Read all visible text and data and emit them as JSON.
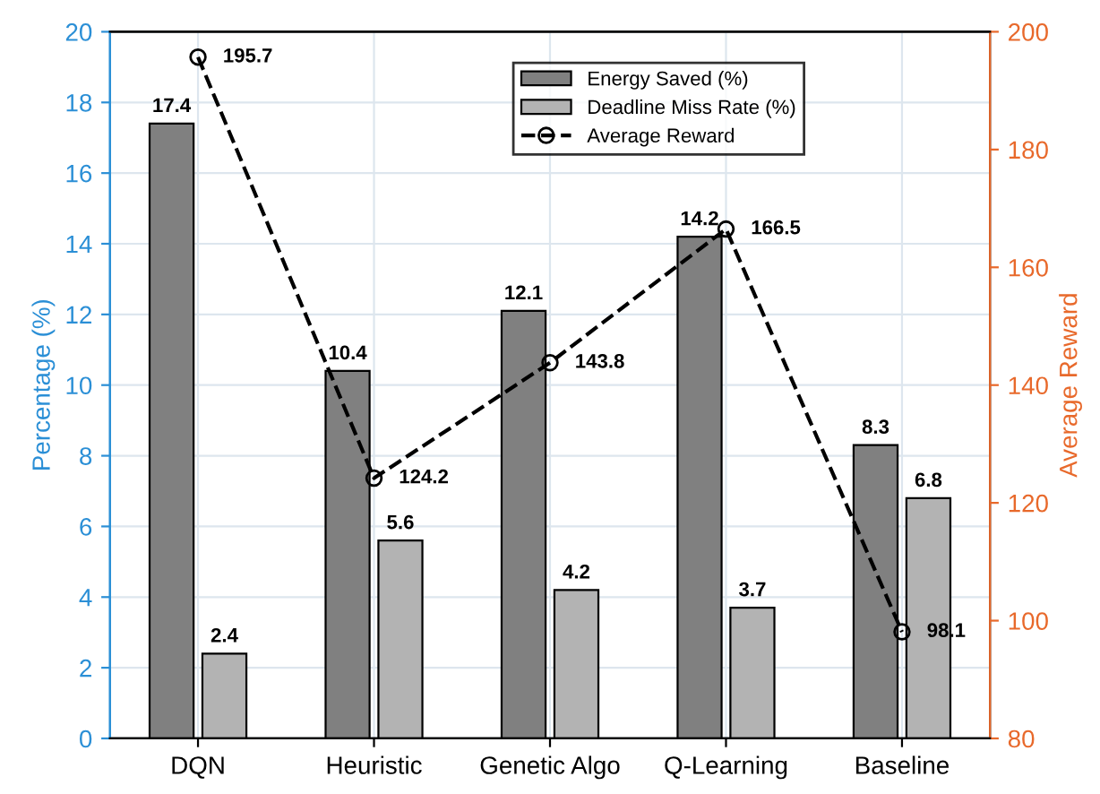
{
  "chart_data": {
    "type": "bar",
    "categories": [
      "DQN",
      "Heuristic",
      "Genetic Algo",
      "Q-Learning",
      "Baseline"
    ],
    "series": [
      {
        "name": "Energy Saved (%)",
        "color": "#808080",
        "values": [
          17.4,
          10.4,
          12.1,
          14.2,
          8.3
        ]
      },
      {
        "name": "Deadline Miss Rate (%)",
        "color": "#b3b3b3",
        "values": [
          2.4,
          5.6,
          4.2,
          3.7,
          6.8
        ]
      },
      {
        "name": "Average Reward",
        "type": "line",
        "axis": "y2",
        "color": "#000000",
        "line_style": "dashed",
        "marker": "circle",
        "values": [
          195.7,
          124.2,
          143.8,
          166.5,
          98.1
        ]
      }
    ],
    "ylabel": "Percentage (%)",
    "y2label": "Average Reward",
    "ylim": [
      0,
      20
    ],
    "yticks": [
      0,
      2,
      4,
      6,
      8,
      10,
      12,
      14,
      16,
      18,
      20
    ],
    "y2lim": [
      80,
      200
    ],
    "y2ticks": [
      80,
      100,
      120,
      140,
      160,
      180,
      200
    ],
    "data_labels": true,
    "grid": true,
    "legend": "top right"
  }
}
